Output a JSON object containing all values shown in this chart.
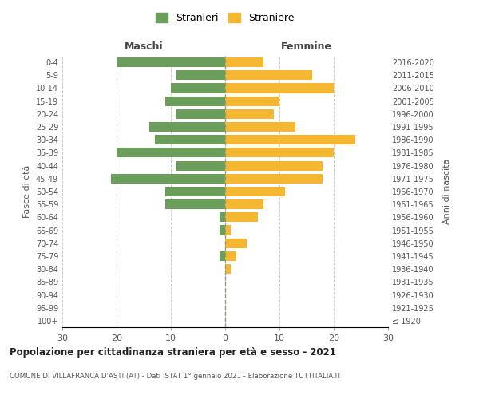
{
  "age_groups": [
    "100+",
    "95-99",
    "90-94",
    "85-89",
    "80-84",
    "75-79",
    "70-74",
    "65-69",
    "60-64",
    "55-59",
    "50-54",
    "45-49",
    "40-44",
    "35-39",
    "30-34",
    "25-29",
    "20-24",
    "15-19",
    "10-14",
    "5-9",
    "0-4"
  ],
  "birth_years": [
    "≤ 1920",
    "1921-1925",
    "1926-1930",
    "1931-1935",
    "1936-1940",
    "1941-1945",
    "1946-1950",
    "1951-1955",
    "1956-1960",
    "1961-1965",
    "1966-1970",
    "1971-1975",
    "1976-1980",
    "1981-1985",
    "1986-1990",
    "1991-1995",
    "1996-2000",
    "2001-2005",
    "2006-2010",
    "2011-2015",
    "2016-2020"
  ],
  "males": [
    0,
    0,
    0,
    0,
    0,
    1,
    0,
    1,
    1,
    11,
    11,
    21,
    9,
    20,
    13,
    14,
    9,
    11,
    10,
    9,
    20
  ],
  "females": [
    0,
    0,
    0,
    0,
    1,
    2,
    4,
    1,
    6,
    7,
    11,
    18,
    18,
    20,
    24,
    13,
    9,
    10,
    20,
    16,
    7
  ],
  "male_color": "#6a9e5a",
  "female_color": "#f5b731",
  "title": "Popolazione per cittadinanza straniera per età e sesso - 2021",
  "subtitle": "COMUNE DI VILLAFRANCA D'ASTI (AT) - Dati ISTAT 1° gennaio 2021 - Elaborazione TUTTITALIA.IT",
  "xlabel_left": "Maschi",
  "xlabel_right": "Femmine",
  "ylabel_left": "Fasce di età",
  "ylabel_right": "Anni di nascita",
  "legend_male": "Stranieri",
  "legend_female": "Straniere",
  "xlim": 30,
  "background_color": "#ffffff",
  "grid_color": "#cccccc"
}
